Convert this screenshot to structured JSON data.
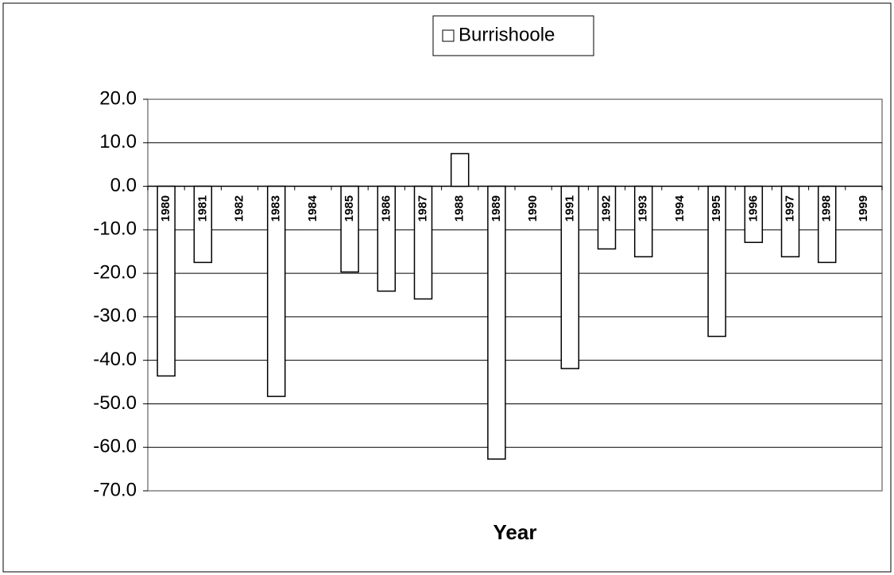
{
  "chart_data": {
    "type": "bar",
    "x_label": "Year",
    "categories": [
      "1980",
      "1981",
      "1982",
      "1983",
      "1984",
      "1985",
      "1986",
      "1987",
      "1988",
      "1989",
      "1990",
      "1991",
      "1992",
      "1993",
      "1994",
      "1995",
      "1996",
      "1997",
      "1998",
      "1999"
    ],
    "series": [
      {
        "name": "Burrishoole",
        "color": "#ffffff",
        "values": [
          -43.6,
          -17.5,
          0,
          -48.3,
          0,
          -19.7,
          -24.1,
          -25.9,
          7.5,
          -62.7,
          0,
          -41.9,
          -14.4,
          -16.2,
          0,
          -34.5,
          -12.9,
          -16.2,
          -17.5,
          0
        ]
      }
    ],
    "ylim": [
      -70,
      20
    ],
    "yticks": [
      {
        "value": 20,
        "label": "20.0"
      },
      {
        "value": 10,
        "label": "10.0"
      },
      {
        "value": 0,
        "label": "0.0"
      },
      {
        "value": -10,
        "label": "-10.0"
      },
      {
        "value": -20,
        "label": "-20.0"
      },
      {
        "value": -30,
        "label": "-30.0"
      },
      {
        "value": -40,
        "label": "-40.0"
      },
      {
        "value": -50,
        "label": "-50.0"
      },
      {
        "value": -60,
        "label": "-60.0"
      },
      {
        "value": -70,
        "label": "-70.0"
      }
    ],
    "grid": true,
    "legend": "top"
  }
}
